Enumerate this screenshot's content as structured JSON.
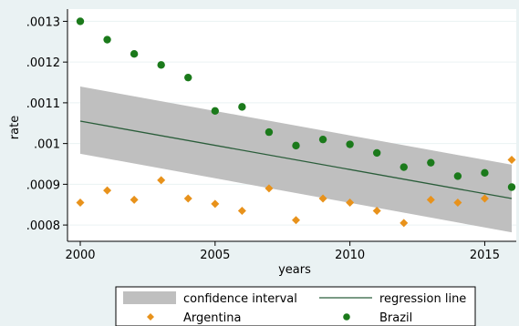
{
  "chart_data": {
    "type": "scatter",
    "xlabel": "years",
    "ylabel": "rate",
    "xlim": [
      2000,
      2016
    ],
    "ylim": [
      0.00076,
      0.00133
    ],
    "x_ticks": [
      2000,
      2005,
      2010,
      2015
    ],
    "x_tick_labels": [
      "2000",
      "2005",
      "2010",
      "2015"
    ],
    "y_ticks": [
      0.0008,
      0.0009,
      0.001,
      0.0011,
      0.0012,
      0.0013
    ],
    "y_tick_labels": [
      ".0008",
      ".0009",
      ".001",
      ".0011",
      ".0012",
      ".0013"
    ],
    "grid": "horizontal",
    "legend_position": "bottom",
    "series": [
      {
        "name": "Argentina",
        "marker": "diamond",
        "color": "#e8921b",
        "x": [
          2000,
          2001,
          2002,
          2003,
          2004,
          2005,
          2006,
          2007,
          2008,
          2009,
          2010,
          2011,
          2012,
          2013,
          2014,
          2015,
          2016
        ],
        "y": [
          0.000855,
          0.000885,
          0.000862,
          0.00091,
          0.000865,
          0.000852,
          0.000835,
          0.00089,
          0.000812,
          0.000865,
          0.000855,
          0.000835,
          0.000805,
          0.000862,
          0.000855,
          0.000865,
          0.00096
        ]
      },
      {
        "name": "Brazil",
        "marker": "circle",
        "color": "#1b7a1b",
        "x": [
          2000,
          2001,
          2002,
          2003,
          2004,
          2005,
          2006,
          2007,
          2008,
          2009,
          2010,
          2011,
          2012,
          2013,
          2014,
          2015,
          2016
        ],
        "y": [
          0.0013,
          0.001255,
          0.00122,
          0.001193,
          0.001162,
          0.00108,
          0.00109,
          0.001028,
          0.000995,
          0.00101,
          0.000998,
          0.000977,
          0.000942,
          0.000953,
          0.00092,
          0.000928,
          0.000893
        ]
      }
    ],
    "regression_line": {
      "name": "regression line",
      "color": "#2a5d3a",
      "x": [
        2000,
        2016
      ],
      "y": [
        0.001055,
        0.000865
      ]
    },
    "confidence_interval": {
      "name": "confidence interval",
      "color": "#bfbfbf",
      "x": [
        2000,
        2016
      ],
      "upper": [
        0.00114,
        0.000948
      ],
      "lower": [
        0.000975,
        0.000782
      ]
    },
    "legend": [
      {
        "label": "confidence interval",
        "kind": "band",
        "color": "#bfbfbf"
      },
      {
        "label": "regression line",
        "kind": "line",
        "color": "#2a5d3a"
      },
      {
        "label": "Argentina",
        "kind": "diamond",
        "color": "#e8921b"
      },
      {
        "label": "Brazil",
        "kind": "circle",
        "color": "#1b7a1b"
      }
    ]
  }
}
